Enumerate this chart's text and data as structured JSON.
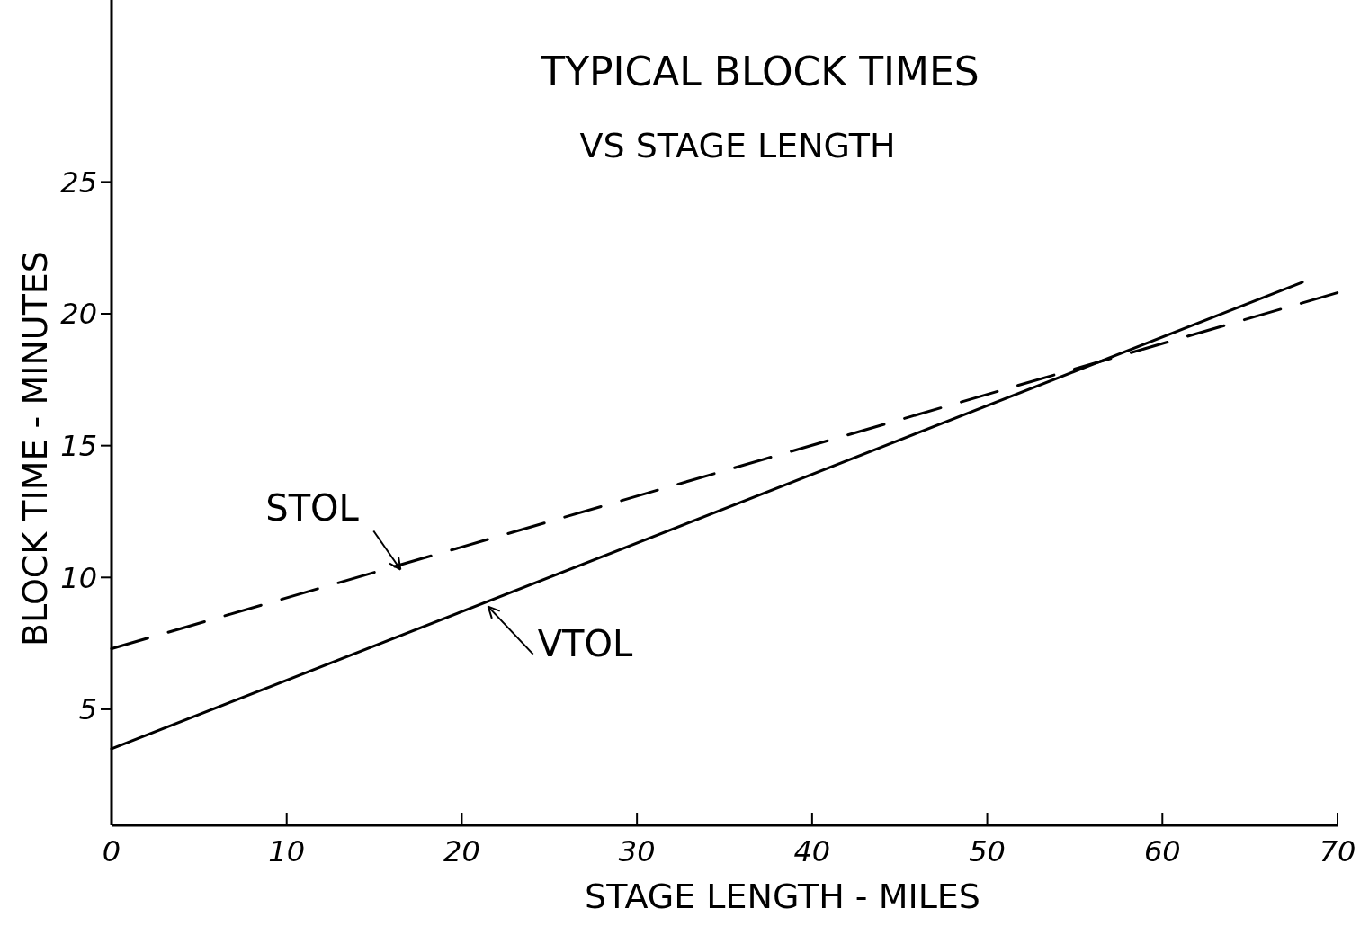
{
  "chart_data": {
    "type": "line",
    "title": "TYPICAL BLOCK TIMES",
    "subtitle": "VS STAGE LENGTH",
    "xlabel": "STAGE LENGTH - MILES",
    "ylabel": "BLOCK TIME - MINUTES",
    "xlim": [
      0,
      70
    ],
    "xticks": [
      0,
      10,
      20,
      30,
      40,
      50,
      60,
      70
    ],
    "ylim": [
      0.6,
      31.9
    ],
    "yticks": [
      5,
      10,
      15,
      20,
      25
    ],
    "grid": false,
    "series": [
      {
        "color": "#000000",
        "line_style": "dashed",
        "x": [
          0,
          70
        ],
        "values": [
          7.3,
          20.8
        ]
      },
      {
        "color": "#000000",
        "line_style": "solid",
        "x": [
          0,
          68
        ],
        "values": [
          3.5,
          21.2
        ]
      }
    ],
    "annotations": [
      {
        "text": "STOL",
        "x": 16.5,
        "y": 10.3
      },
      {
        "text": "VTOL",
        "x": 21.5,
        "y": 8.9
      }
    ]
  }
}
